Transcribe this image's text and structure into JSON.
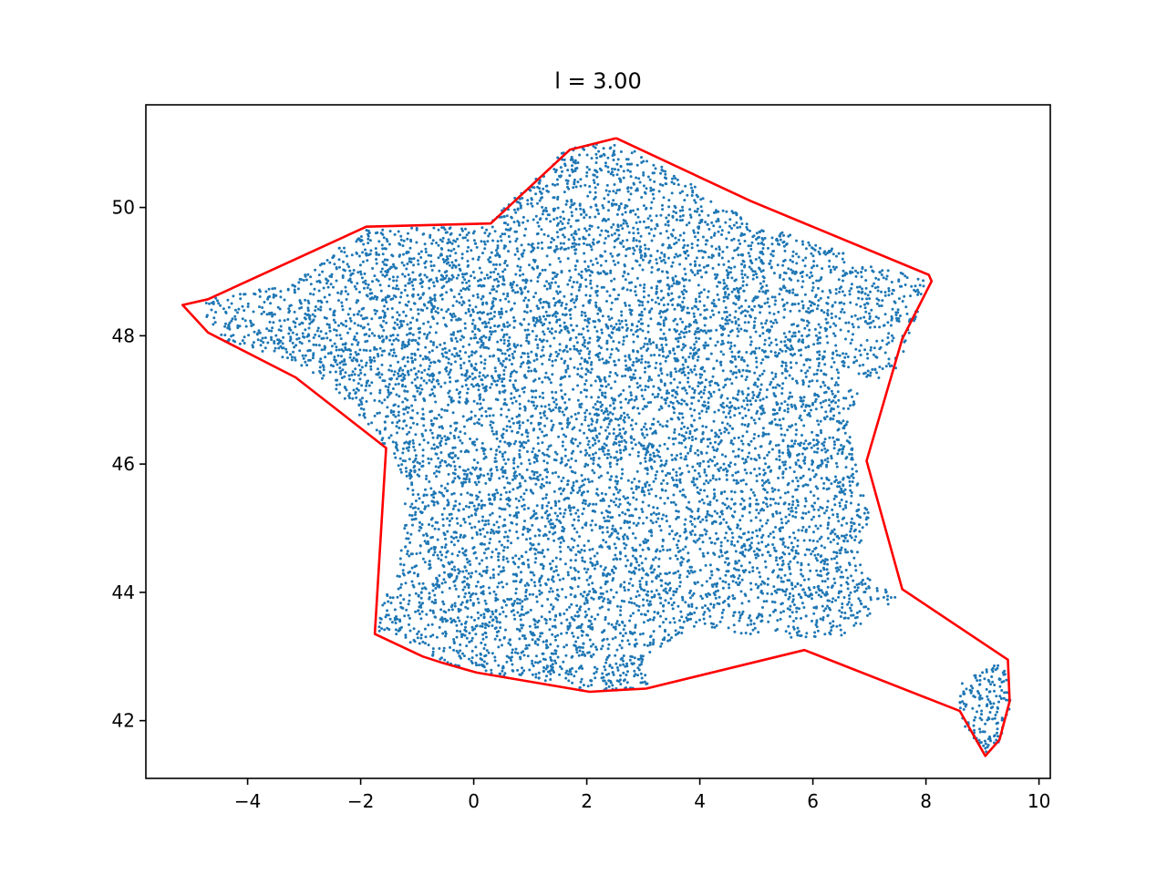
{
  "chart_data": {
    "type": "scatter",
    "title": "l = 3.00",
    "xlabel": "",
    "ylabel": "",
    "xlim": [
      -5.8,
      10.2
    ],
    "ylim": [
      41.1,
      51.6
    ],
    "xticks": [
      -4,
      -2,
      0,
      2,
      4,
      6,
      8,
      10
    ],
    "xtick_labels": [
      "−4",
      "−2",
      "0",
      "2",
      "4",
      "6",
      "8",
      "10"
    ],
    "yticks": [
      42,
      44,
      46,
      48,
      50
    ],
    "ytick_labels": [
      "42",
      "44",
      "46",
      "48",
      "50"
    ],
    "grid": false,
    "colors": {
      "points": "#1f77b4",
      "hull": "#ff0000"
    },
    "point_regions": [
      {
        "name": "mainland",
        "approx_count": 9000,
        "boundary": [
          [
            -4.75,
            48.6
          ],
          [
            -3.2,
            48.8
          ],
          [
            -1.9,
            49.7
          ],
          [
            0.2,
            49.7
          ],
          [
            1.6,
            50.9
          ],
          [
            2.5,
            51.05
          ],
          [
            4.0,
            50.3
          ],
          [
            5.0,
            49.7
          ],
          [
            6.0,
            49.5
          ],
          [
            7.0,
            49.1
          ],
          [
            8.0,
            48.9
          ],
          [
            7.9,
            48.5
          ],
          [
            7.6,
            47.7
          ],
          [
            7.5,
            47.4
          ],
          [
            6.9,
            47.3
          ],
          [
            6.6,
            46.6
          ],
          [
            6.7,
            46.3
          ],
          [
            6.8,
            45.8
          ],
          [
            7.0,
            45.2
          ],
          [
            6.8,
            44.6
          ],
          [
            7.2,
            44.1
          ],
          [
            7.5,
            43.9
          ],
          [
            6.5,
            43.3
          ],
          [
            5.0,
            43.3
          ],
          [
            4.0,
            43.5
          ],
          [
            3.0,
            43.0
          ],
          [
            3.1,
            42.5
          ],
          [
            2.0,
            42.45
          ],
          [
            1.5,
            42.6
          ],
          [
            0.5,
            42.7
          ],
          [
            -0.5,
            42.9
          ],
          [
            -1.3,
            43.3
          ],
          [
            -1.8,
            43.4
          ],
          [
            -1.3,
            44.5
          ],
          [
            -1.2,
            45.7
          ],
          [
            -1.5,
            46.2
          ],
          [
            -2.0,
            46.7
          ],
          [
            -2.6,
            47.3
          ],
          [
            -3.5,
            47.7
          ],
          [
            -4.4,
            47.9
          ],
          [
            -4.75,
            48.3
          ]
        ]
      },
      {
        "name": "corsica",
        "approx_count": 160,
        "boundary": [
          [
            8.6,
            42.6
          ],
          [
            9.3,
            42.9
          ],
          [
            9.45,
            42.7
          ],
          [
            9.5,
            42.2
          ],
          [
            9.3,
            41.65
          ],
          [
            9.05,
            41.5
          ],
          [
            8.7,
            41.8
          ],
          [
            8.6,
            42.1
          ]
        ]
      }
    ],
    "hull": {
      "name": "concave hull",
      "x": [
        2.52,
        4.9,
        8.05,
        8.1,
        7.58,
        6.95,
        7.58,
        9.45,
        9.48,
        9.3,
        9.05,
        8.6,
        5.85,
        3.05,
        2.6,
        2.05,
        0.05,
        -0.55,
        -0.9,
        -1.75,
        -1.55,
        -3.15,
        -4.7,
        -5.15,
        -4.7,
        -1.9,
        0.3,
        1.7,
        2.52
      ],
      "y": [
        51.08,
        50.1,
        48.95,
        48.85,
        47.95,
        46.05,
        44.05,
        42.95,
        42.3,
        41.7,
        41.45,
        42.15,
        43.1,
        42.5,
        42.48,
        42.45,
        42.75,
        42.9,
        43.0,
        43.35,
        46.25,
        47.35,
        48.05,
        48.48,
        48.57,
        49.7,
        49.75,
        50.9,
        51.08
      ]
    }
  }
}
